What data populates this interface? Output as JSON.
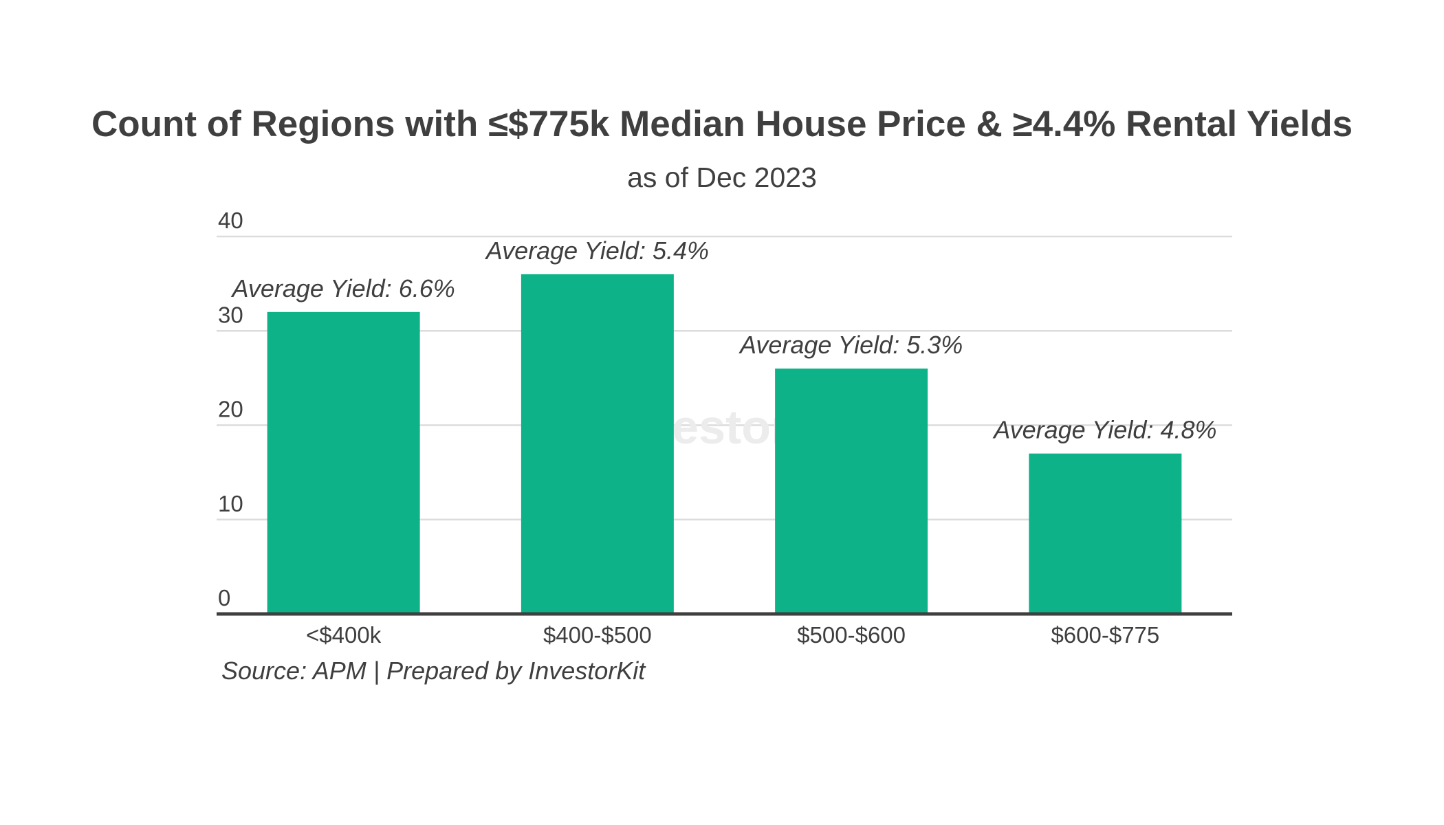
{
  "chart_data": {
    "type": "bar",
    "title": "Count of Regions with ≤$775k Median House Price & ≥4.4% Rental Yields",
    "subtitle": "as of Dec 2023",
    "categories": [
      "<$400k",
      "$400-$500",
      "$500-$600",
      "$600-$775"
    ],
    "values": [
      32,
      36,
      26,
      17
    ],
    "data_labels": [
      "Average Yield: 6.6%",
      "Average Yield: 5.4%",
      "Average Yield: 5.3%",
      "Average Yield: 4.8%"
    ],
    "xlabel": "",
    "ylabel": "",
    "ylim": [
      0,
      40
    ],
    "yticks": [
      0,
      10,
      20,
      30,
      40
    ],
    "grid": true,
    "bar_color": "#0db289",
    "source": "Source: APM | Prepared by InvestorKit",
    "watermark": "InvestorKit"
  }
}
